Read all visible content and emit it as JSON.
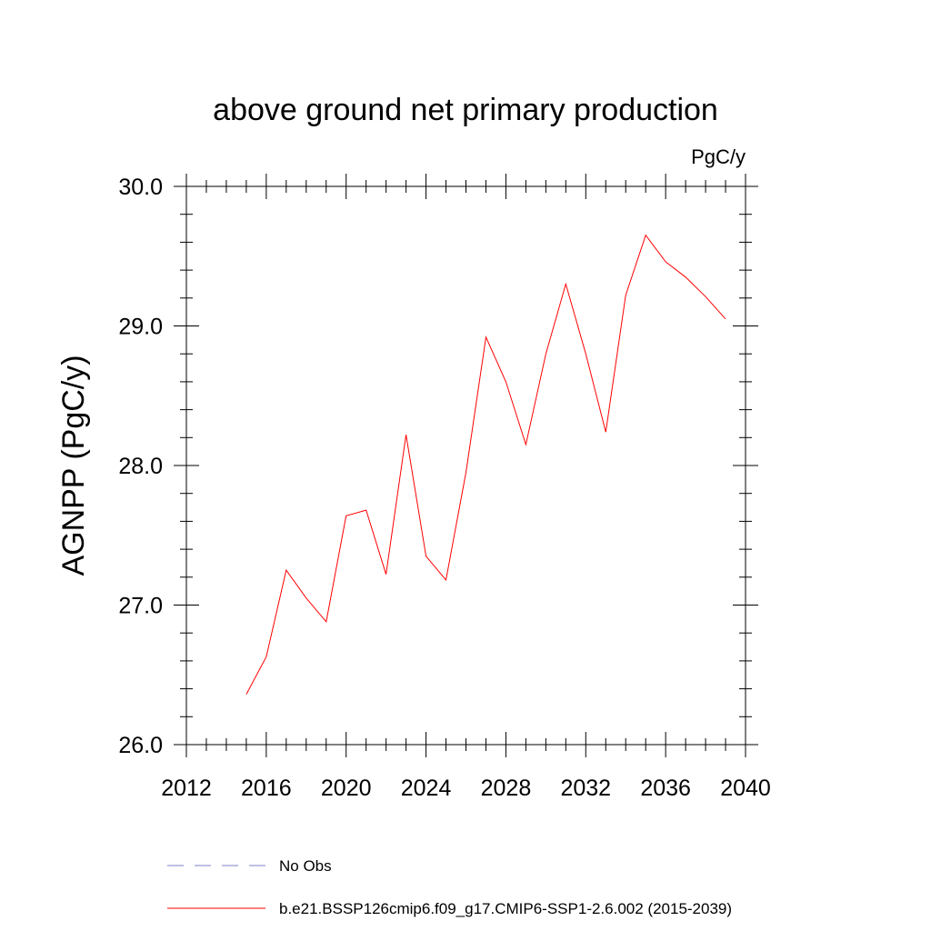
{
  "chart_data": {
    "type": "line",
    "title": "above ground net primary production",
    "units_label": "PgC/y",
    "ylabel": "AGNPP  (PgC/y)",
    "xlabel": "",
    "xlim": [
      2012,
      2040
    ],
    "ylim": [
      26.0,
      30.0
    ],
    "xticks": [
      2012,
      2016,
      2020,
      2024,
      2028,
      2032,
      2036,
      2040
    ],
    "xtick_labels": [
      "2012",
      "2016",
      "2020",
      "2024",
      "2028",
      "2032",
      "2036",
      "2040"
    ],
    "yticks": [
      26.0,
      27.0,
      28.0,
      29.0,
      30.0
    ],
    "ytick_labels": [
      "26.0",
      "27.0",
      "28.0",
      "29.0",
      "30.0"
    ],
    "grid": false,
    "legend_placement": "bottom",
    "series": [
      {
        "name": "b.e21.BSSP126cmip6.f09_g17.CMIP6-SSP1-2.6.002 (2015-2039)",
        "color": "#ff0000",
        "dash": "solid",
        "x": [
          2015,
          2016,
          2017,
          2018,
          2019,
          2020,
          2021,
          2022,
          2023,
          2024,
          2025,
          2026,
          2027,
          2028,
          2029,
          2030,
          2031,
          2032,
          2033,
          2034,
          2035,
          2036,
          2037,
          2038,
          2039
        ],
        "y": [
          26.36,
          26.63,
          27.25,
          27.05,
          26.88,
          27.64,
          27.68,
          27.22,
          28.22,
          27.35,
          27.18,
          27.95,
          28.92,
          28.6,
          28.15,
          28.8,
          29.3,
          28.8,
          28.24,
          29.22,
          29.65,
          29.46,
          29.35,
          29.21,
          29.05
        ]
      }
    ],
    "legend": [
      {
        "label": "No Obs",
        "color": "#7f7fcc",
        "dash": "dashed"
      },
      {
        "label": "b.e21.BSSP126cmip6.f09_g17.CMIP6-SSP1-2.6.002 (2015-2039)",
        "color": "#ff0000",
        "dash": "solid"
      }
    ]
  }
}
